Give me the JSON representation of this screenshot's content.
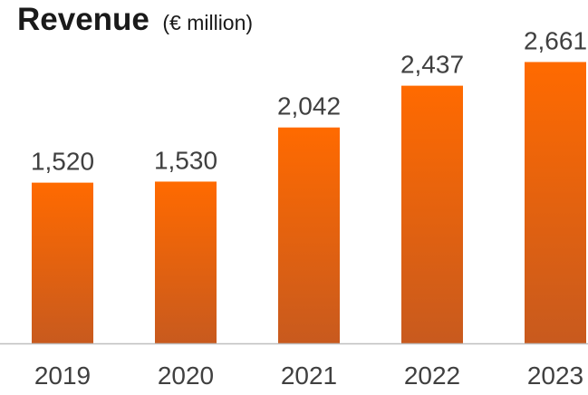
{
  "chart_data": {
    "type": "bar",
    "title": "Revenue",
    "unit": "(€ million)",
    "categories": [
      "2019",
      "2020",
      "2021",
      "2022",
      "2023"
    ],
    "values": [
      1520,
      1530,
      2042,
      2437,
      2661
    ],
    "value_labels": [
      "1,520",
      "1,530",
      "2,042",
      "2,437",
      "2,661"
    ],
    "ylim": [
      0,
      3000
    ],
    "grid": false,
    "legend": "none",
    "colors": {
      "bar_top": "#ff6a00",
      "bar_bottom": "#c85a1e",
      "axis": "#bfbfbf"
    }
  }
}
